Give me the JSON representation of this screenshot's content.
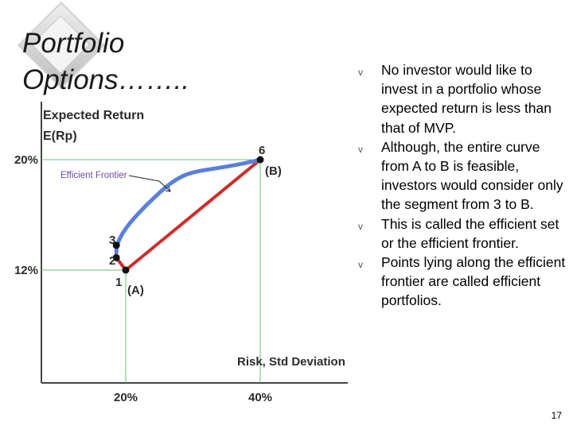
{
  "slide": {
    "title_line1": "Portfolio",
    "title_line2": "Options……..",
    "page_number": "17"
  },
  "bullets": [
    {
      "marker": "v",
      "text": "No investor would like to invest in a portfolio whose expected return is less than that of MVP."
    },
    {
      "marker": "v",
      "text": "Although, the entire curve from A to B is feasible, investors would consider only the segment from 3 to B."
    },
    {
      "marker": "v",
      "text": "This is called the efficient set or the efficient frontier."
    },
    {
      "marker": "v",
      "text": "Points lying along the efficient frontier are called efficient portfolios."
    }
  ],
  "chart_data": {
    "type": "line",
    "ylabel_line1": "Expected Return",
    "ylabel_line2": "E(Rp)",
    "xlabel": "Risk, Std Deviation",
    "y_ticks": [
      "20%",
      "12%"
    ],
    "x_ticks": [
      "20%",
      "40%"
    ],
    "frontier_label": "Efficient Frontier",
    "point_labels": {
      "one": "1",
      "two": "2",
      "three": "3",
      "six": "6",
      "a": "(A)",
      "b": "(B)"
    },
    "series": [
      {
        "color": "#d42a2a",
        "points": [
          [
            20,
            12
          ],
          [
            40,
            20
          ]
        ]
      },
      {
        "color": "#5b7fe0",
        "points": [
          [
            18.6,
            13.3
          ],
          [
            19.5,
            15.2
          ],
          [
            25,
            17.6
          ],
          [
            32,
            18.9
          ],
          [
            40,
            20
          ]
        ]
      }
    ],
    "points": [
      {
        "label": "1",
        "risk": 20,
        "return": 12
      },
      {
        "label": "2",
        "risk": 18.6,
        "return": 12.9
      },
      {
        "label": "3",
        "risk": 18.6,
        "return": 13.8
      },
      {
        "label": "6",
        "risk": 40,
        "return": 20
      }
    ],
    "colors": {
      "axis": "#444444",
      "grid": "#6fbf6f",
      "red": "#d42a2a",
      "blue": "#5b7fe0",
      "label": "#2b2b2b",
      "frontier_label": "#6a4c9c"
    }
  }
}
